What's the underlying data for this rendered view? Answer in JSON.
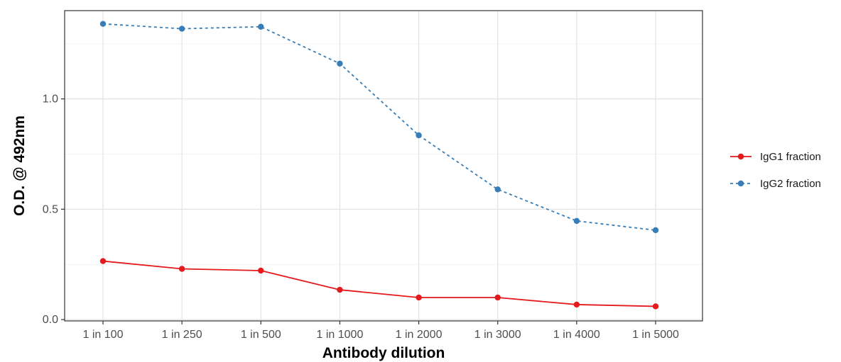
{
  "chart_data": {
    "type": "line",
    "title": "",
    "xlabel": "Antibody dilution",
    "ylabel": "O.D. @ 492nm",
    "categories": [
      "1 in 100",
      "1 in 250",
      "1 in 500",
      "1 in 1000",
      "1 in 2000",
      "1 in 3000",
      "1 in 4000",
      "1 in 5000"
    ],
    "ylim": [
      -0.006,
      1.4
    ],
    "yticks": [
      0.0,
      0.5,
      1.0
    ],
    "ytick_labels": [
      "0.0",
      "0.5",
      "1.0"
    ],
    "grid": true,
    "legend_position": "right",
    "series": [
      {
        "name": "IgG1 fraction",
        "color": "#e41a1c",
        "line_style": "solid",
        "values": [
          0.265,
          0.23,
          0.222,
          0.135,
          0.1,
          0.1,
          0.068,
          0.06
        ]
      },
      {
        "name": "IgG2 fraction",
        "color": "#377eb8",
        "line_style": "dashed",
        "values": [
          1.34,
          1.318,
          1.327,
          1.16,
          0.835,
          0.59,
          0.447,
          0.405
        ]
      }
    ]
  }
}
